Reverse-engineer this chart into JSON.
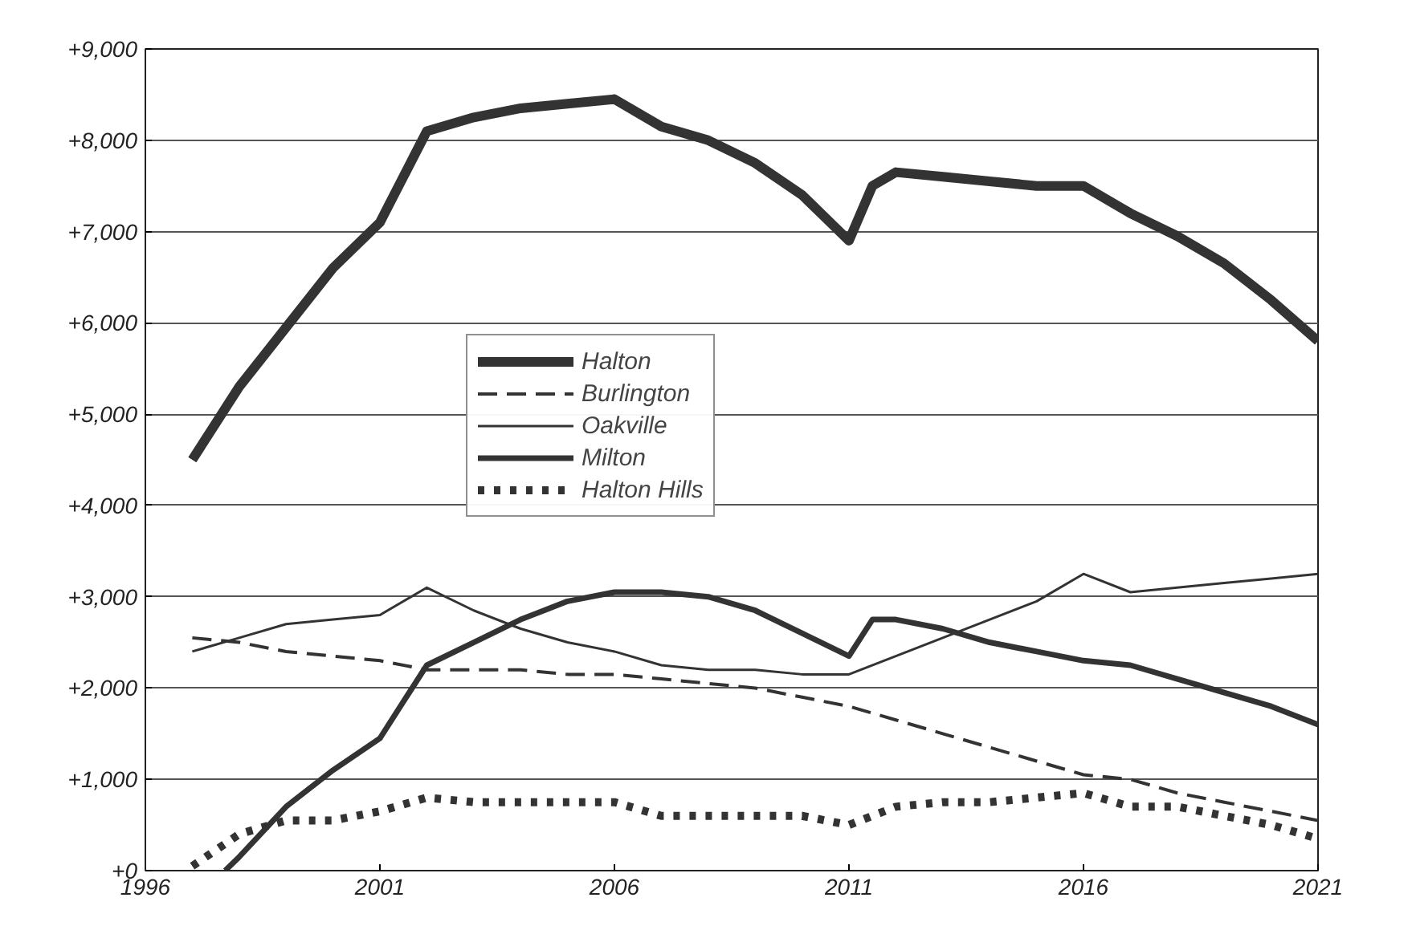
{
  "chart_data": {
    "type": "line",
    "xlim": [
      1996,
      2021
    ],
    "xticks": [
      1996,
      2001,
      2006,
      2011,
      2016,
      2021
    ],
    "ylim": [
      0,
      9000
    ],
    "yticks": [
      {
        "value": 0,
        "label": "+0"
      },
      {
        "value": 1000,
        "label": "+1,000"
      },
      {
        "value": 2000,
        "label": "+2,000"
      },
      {
        "value": 3000,
        "label": "+3,000"
      },
      {
        "value": 4000,
        "label": "+4,000"
      },
      {
        "value": 5000,
        "label": "+5,000"
      },
      {
        "value": 6000,
        "label": "+6,000"
      },
      {
        "value": 7000,
        "label": "+7,000"
      },
      {
        "value": 8000,
        "label": "+8,000"
      },
      {
        "value": 9000,
        "label": "+9,000"
      }
    ],
    "grid": "y",
    "legend": "center",
    "series": [
      {
        "name": "Halton",
        "color": "#333333",
        "line_style": "solid",
        "x": [
          1997,
          1998,
          1999,
          2000,
          2001,
          2002,
          2003,
          2004,
          2005,
          2006,
          2007,
          2008,
          2009,
          2010,
          2011,
          2011.5,
          2012,
          2013,
          2014,
          2015,
          2016,
          2017,
          2018,
          2019,
          2020,
          2021
        ],
        "values": [
          4500,
          5300,
          5950,
          6600,
          7100,
          8100,
          8250,
          8350,
          8400,
          8450,
          8150,
          8000,
          7750,
          7400,
          6900,
          7500,
          7650,
          7600,
          7550,
          7500,
          7500,
          7200,
          6950,
          6650,
          6250,
          5800
        ]
      },
      {
        "name": "Burlington",
        "color": "#333333",
        "line_style": "dashed",
        "x": [
          1997,
          1998,
          1999,
          2000,
          2001,
          2002,
          2003,
          2004,
          2005,
          2006,
          2007,
          2008,
          2009,
          2010,
          2011,
          2012,
          2013,
          2014,
          2015,
          2016,
          2017,
          2018,
          2019,
          2020,
          2021
        ],
        "values": [
          2550,
          2500,
          2400,
          2350,
          2300,
          2200,
          2200,
          2200,
          2150,
          2150,
          2100,
          2050,
          2000,
          1900,
          1800,
          1650,
          1500,
          1350,
          1200,
          1050,
          1000,
          850,
          750,
          650,
          550
        ]
      },
      {
        "name": "Oakville",
        "color": "#333333",
        "line_style": "solid",
        "x": [
          1997,
          1998,
          1999,
          2000,
          2001,
          2002,
          2003,
          2004,
          2005,
          2006,
          2007,
          2008,
          2009,
          2010,
          2011,
          2012,
          2013,
          2014,
          2015,
          2016,
          2017,
          2018,
          2019,
          2020,
          2021
        ],
        "values": [
          2400,
          2550,
          2700,
          2750,
          2800,
          3100,
          2850,
          2650,
          2500,
          2400,
          2250,
          2200,
          2200,
          2150,
          2150,
          2350,
          2550,
          2750,
          2950,
          3250,
          3050,
          3100,
          3150,
          3200,
          3250
        ]
      },
      {
        "name": "Milton",
        "color": "#333333",
        "line_style": "solid",
        "x": [
          1997.7,
          1998,
          1999,
          2000,
          2001,
          2002,
          2003,
          2004,
          2005,
          2006,
          2007,
          2008,
          2009,
          2010,
          2011,
          2011.5,
          2012,
          2013,
          2014,
          2015,
          2016,
          2017,
          2018,
          2019,
          2020,
          2021
        ],
        "values": [
          0,
          150,
          700,
          1100,
          1450,
          2250,
          2500,
          2750,
          2950,
          3050,
          3050,
          3000,
          2850,
          2600,
          2350,
          2750,
          2750,
          2650,
          2500,
          2400,
          2300,
          2250,
          2100,
          1950,
          1800,
          1600
        ]
      },
      {
        "name": "Halton Hills",
        "color": "#333333",
        "line_style": "dotted",
        "x": [
          1997,
          1998,
          1999,
          2000,
          2001,
          2002,
          2003,
          2004,
          2005,
          2006,
          2007,
          2008,
          2009,
          2010,
          2011,
          2012,
          2013,
          2014,
          2015,
          2016,
          2017,
          2018,
          2019,
          2020,
          2021
        ],
        "values": [
          50,
          400,
          550,
          550,
          650,
          800,
          750,
          750,
          750,
          750,
          600,
          600,
          600,
          600,
          500,
          700,
          750,
          750,
          800,
          850,
          700,
          700,
          600,
          500,
          350
        ]
      }
    ]
  }
}
